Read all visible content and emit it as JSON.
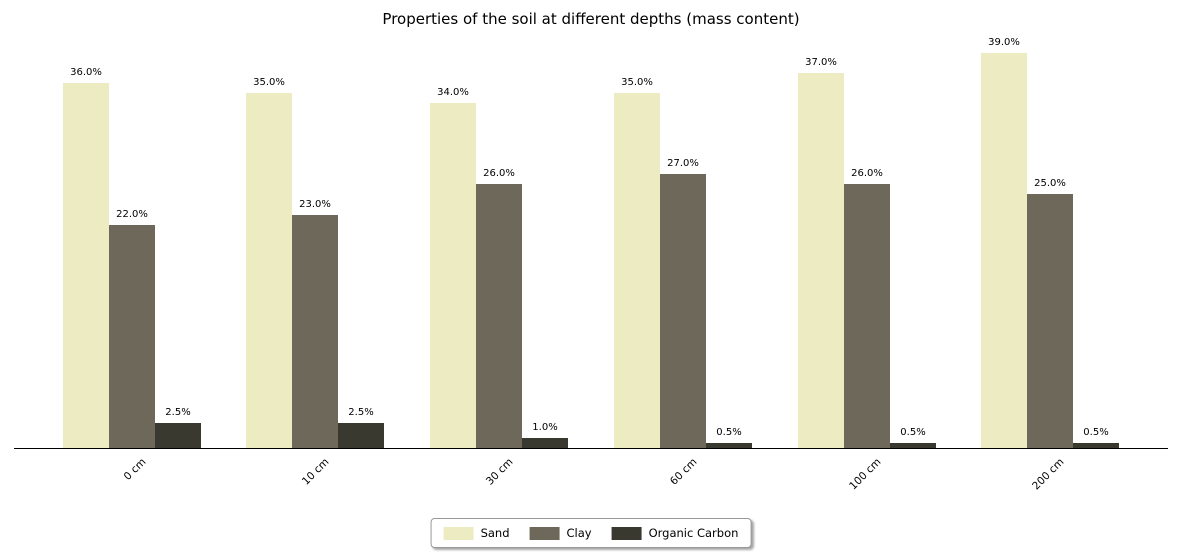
{
  "chart_data": {
    "type": "bar",
    "title": "Properties of the soil at different depths (mass content)",
    "xlabel": "",
    "ylabel": "",
    "categories": [
      "0 cm",
      "10 cm",
      "30 cm",
      "60 cm",
      "100 cm",
      "200 cm"
    ],
    "series": [
      {
        "name": "Sand",
        "color": "#ecebc2",
        "values": [
          36.0,
          35.0,
          34.0,
          35.0,
          37.0,
          39.0
        ]
      },
      {
        "name": "Clay",
        "color": "#6d685a",
        "values": [
          22.0,
          23.0,
          26.0,
          27.0,
          26.0,
          25.0
        ]
      },
      {
        "name": "Organic Carbon",
        "color": "#3a392f",
        "values": [
          2.5,
          2.5,
          1.0,
          0.5,
          0.5,
          0.5
        ]
      }
    ],
    "bar_labels": [
      [
        "36.0%",
        "35.0%",
        "34.0%",
        "35.0%",
        "37.0%",
        "39.0%"
      ],
      [
        "22.0%",
        "23.0%",
        "26.0%",
        "27.0%",
        "26.0%",
        "25.0%"
      ],
      [
        "2.5%",
        "2.5%",
        "1.0%",
        "0.5%",
        "0.5%",
        "0.5%"
      ]
    ],
    "ylim": [
      0,
      40
    ],
    "grid": false,
    "legend_position": "bottom-center",
    "legend_entries": [
      "Sand",
      "Clay",
      "Organic Carbon"
    ]
  }
}
